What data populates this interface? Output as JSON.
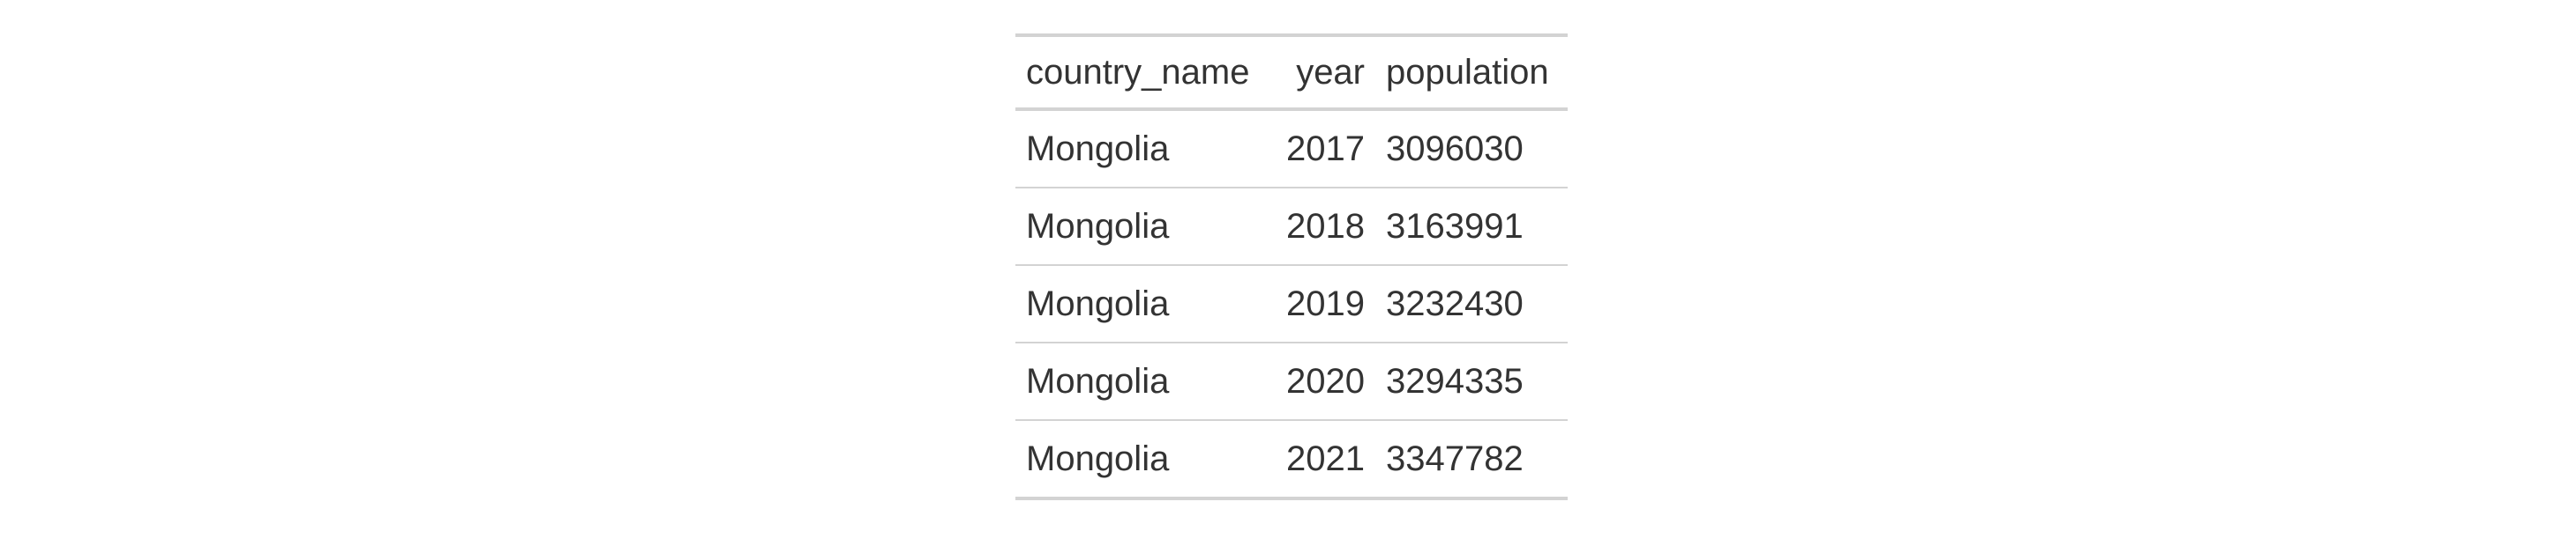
{
  "table": {
    "columns": [
      "country_name",
      "year",
      "population"
    ],
    "rows": [
      [
        "Mongolia",
        "2017",
        "3096030"
      ],
      [
        "Mongolia",
        "2018",
        "3163991"
      ],
      [
        "Mongolia",
        "2019",
        "3232430"
      ],
      [
        "Mongolia",
        "2020",
        "3294335"
      ],
      [
        "Mongolia",
        "2021",
        "3347782"
      ]
    ]
  },
  "colors": {
    "text": "#333333",
    "rule": "#d3d3d3",
    "background": "#ffffff"
  }
}
